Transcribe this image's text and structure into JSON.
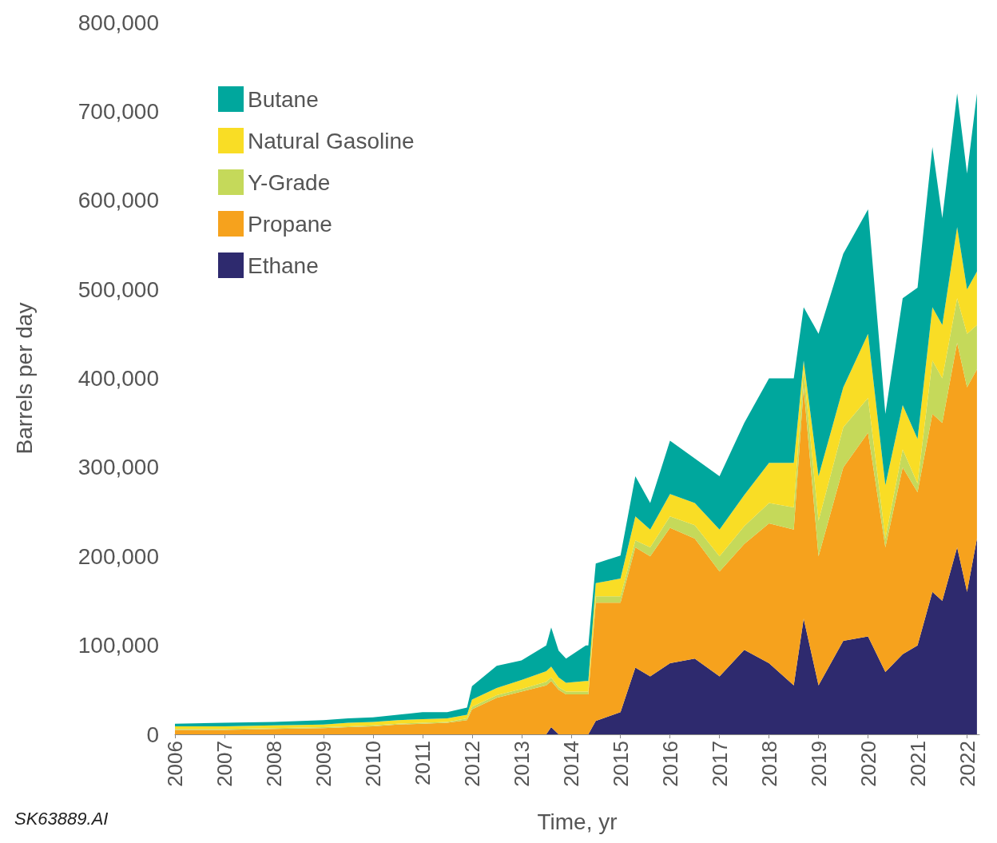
{
  "chart_data": {
    "type": "area",
    "stacked": true,
    "xlabel": "Time, yr",
    "ylabel": "Barrels per day",
    "annotations": [
      "SK63889.AI"
    ],
    "legend": "top left",
    "x": [
      2006,
      2007,
      2008,
      2009,
      2009.5,
      2010,
      2010.5,
      2011,
      2011.5,
      2011.9,
      2012,
      2012.5,
      2013,
      2013.5,
      2013.6,
      2013.75,
      2013.9,
      2014.3,
      2014.35,
      2014.5,
      2015,
      2015.3,
      2015.6,
      2016,
      2016.5,
      2017,
      2017.5,
      2018,
      2018.5,
      2018.7,
      2019,
      2019.5,
      2020,
      2020.35,
      2020.7,
      2021,
      2021.3,
      2021.5,
      2021.8,
      2022,
      2022.2
    ],
    "xlim": [
      2006,
      2022.25
    ],
    "xticks": [
      2006,
      2007,
      2008,
      2009,
      2010,
      2011,
      2012,
      2013,
      2014,
      2015,
      2016,
      2017,
      2018,
      2019,
      2020,
      2021,
      2022
    ],
    "ylim": [
      0,
      800000
    ],
    "yticks": [
      {
        "value": 0,
        "label": "0"
      },
      {
        "value": 100000,
        "label": "100,000"
      },
      {
        "value": 200000,
        "label": "200,000"
      },
      {
        "value": 300000,
        "label": "300,000"
      },
      {
        "value": 400000,
        "label": "400,000"
      },
      {
        "value": 500000,
        "label": "500,000"
      },
      {
        "value": 600000,
        "label": "600,000"
      },
      {
        "value": 700000,
        "label": "700,000"
      },
      {
        "value": 800000,
        "label": "800,000"
      }
    ],
    "series": [
      {
        "name": "Ethane",
        "color": "#2e2a6e",
        "values": [
          0,
          0,
          0,
          0,
          0,
          0,
          0,
          0,
          0,
          0,
          0,
          0,
          0,
          0,
          8000,
          0,
          0,
          0,
          0,
          15000,
          25000,
          75000,
          65000,
          80000,
          85000,
          65000,
          95000,
          80000,
          55000,
          130000,
          55000,
          105000,
          110000,
          70000,
          90000,
          100000,
          160000,
          150000,
          210000,
          160000,
          220000
        ]
      },
      {
        "name": "Propane",
        "color": "#f6a21d",
        "values": [
          5000,
          5000,
          6000,
          7000,
          8000,
          9000,
          11000,
          12000,
          13000,
          16000,
          28000,
          41000,
          48000,
          55000,
          52000,
          50000,
          45000,
          45000,
          45000,
          133000,
          123000,
          135000,
          135000,
          152000,
          135000,
          118000,
          119000,
          157000,
          175000,
          260000,
          145000,
          195000,
          229000,
          140000,
          210000,
          172000,
          200000,
          200000,
          230000,
          230000,
          190000
        ]
      },
      {
        "name": "Y-Grade",
        "color": "#c5d95a",
        "values": [
          1000,
          1000,
          1000,
          1000,
          1000,
          1000,
          1000,
          1000,
          1000,
          2000,
          3000,
          3000,
          3000,
          4000,
          4000,
          3000,
          3000,
          3000,
          3000,
          7000,
          7000,
          8000,
          10000,
          13000,
          15000,
          17000,
          20000,
          23000,
          25000,
          20000,
          40000,
          45000,
          39000,
          10000,
          20000,
          10000,
          60000,
          50000,
          50000,
          60000,
          50000
        ]
      },
      {
        "name": "Natural Gasoline",
        "color": "#f9dd25",
        "values": [
          3000,
          3000,
          3000,
          3000,
          4000,
          4000,
          4000,
          4000,
          4000,
          4000,
          8000,
          8000,
          10000,
          12000,
          12000,
          11000,
          10000,
          12000,
          12000,
          15000,
          20000,
          27000,
          20000,
          25000,
          25000,
          30000,
          35000,
          45000,
          50000,
          10000,
          50000,
          45000,
          72000,
          60000,
          50000,
          50000,
          60000,
          60000,
          80000,
          50000,
          60000
        ]
      },
      {
        "name": "Butane",
        "color": "#00a79d",
        "values": [
          3000,
          4000,
          4000,
          5000,
          5000,
          5000,
          6000,
          8000,
          7000,
          8000,
          15000,
          25000,
          22000,
          29000,
          44000,
          30000,
          27000,
          40000,
          40000,
          22000,
          26000,
          45000,
          30000,
          60000,
          50000,
          60000,
          81000,
          95000,
          95000,
          60000,
          160000,
          150000,
          140000,
          80000,
          120000,
          170000,
          180000,
          120000,
          150000,
          130000,
          200000
        ]
      }
    ]
  }
}
